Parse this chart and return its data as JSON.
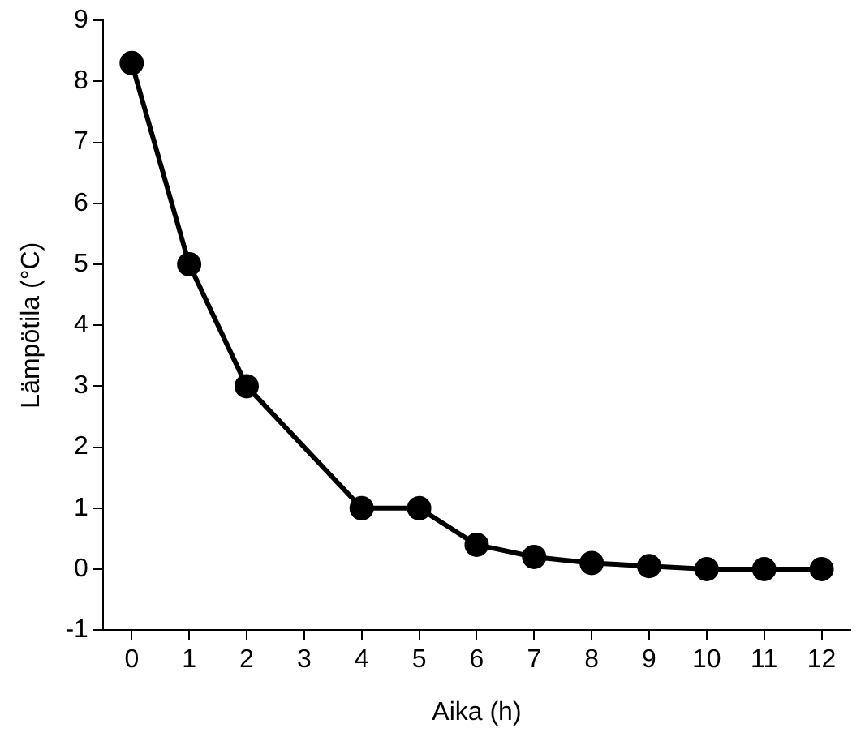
{
  "chart_data": {
    "type": "line",
    "xlabel": "Aika (h)",
    "ylabel": "Lämpötila (°C)",
    "x": [
      0,
      1,
      2,
      4,
      5,
      6,
      7,
      8,
      9,
      10,
      11,
      12
    ],
    "series": [
      {
        "color": "#000000",
        "values": [
          8.3,
          5,
          3,
          1,
          1,
          0.4,
          0.2,
          0.1,
          0.05,
          0,
          0,
          0
        ]
      }
    ],
    "xlim": [
      -0.5,
      12.5
    ],
    "xticks": [
      0,
      1,
      2,
      3,
      4,
      5,
      6,
      7,
      8,
      9,
      10,
      11,
      12
    ],
    "ylim": [
      -1,
      9
    ],
    "yticks": [
      -1,
      0,
      1,
      2,
      3,
      4,
      5,
      6,
      7,
      8,
      9
    ],
    "grid": false,
    "legend": false,
    "marker": "circle",
    "line_style": "solid"
  }
}
